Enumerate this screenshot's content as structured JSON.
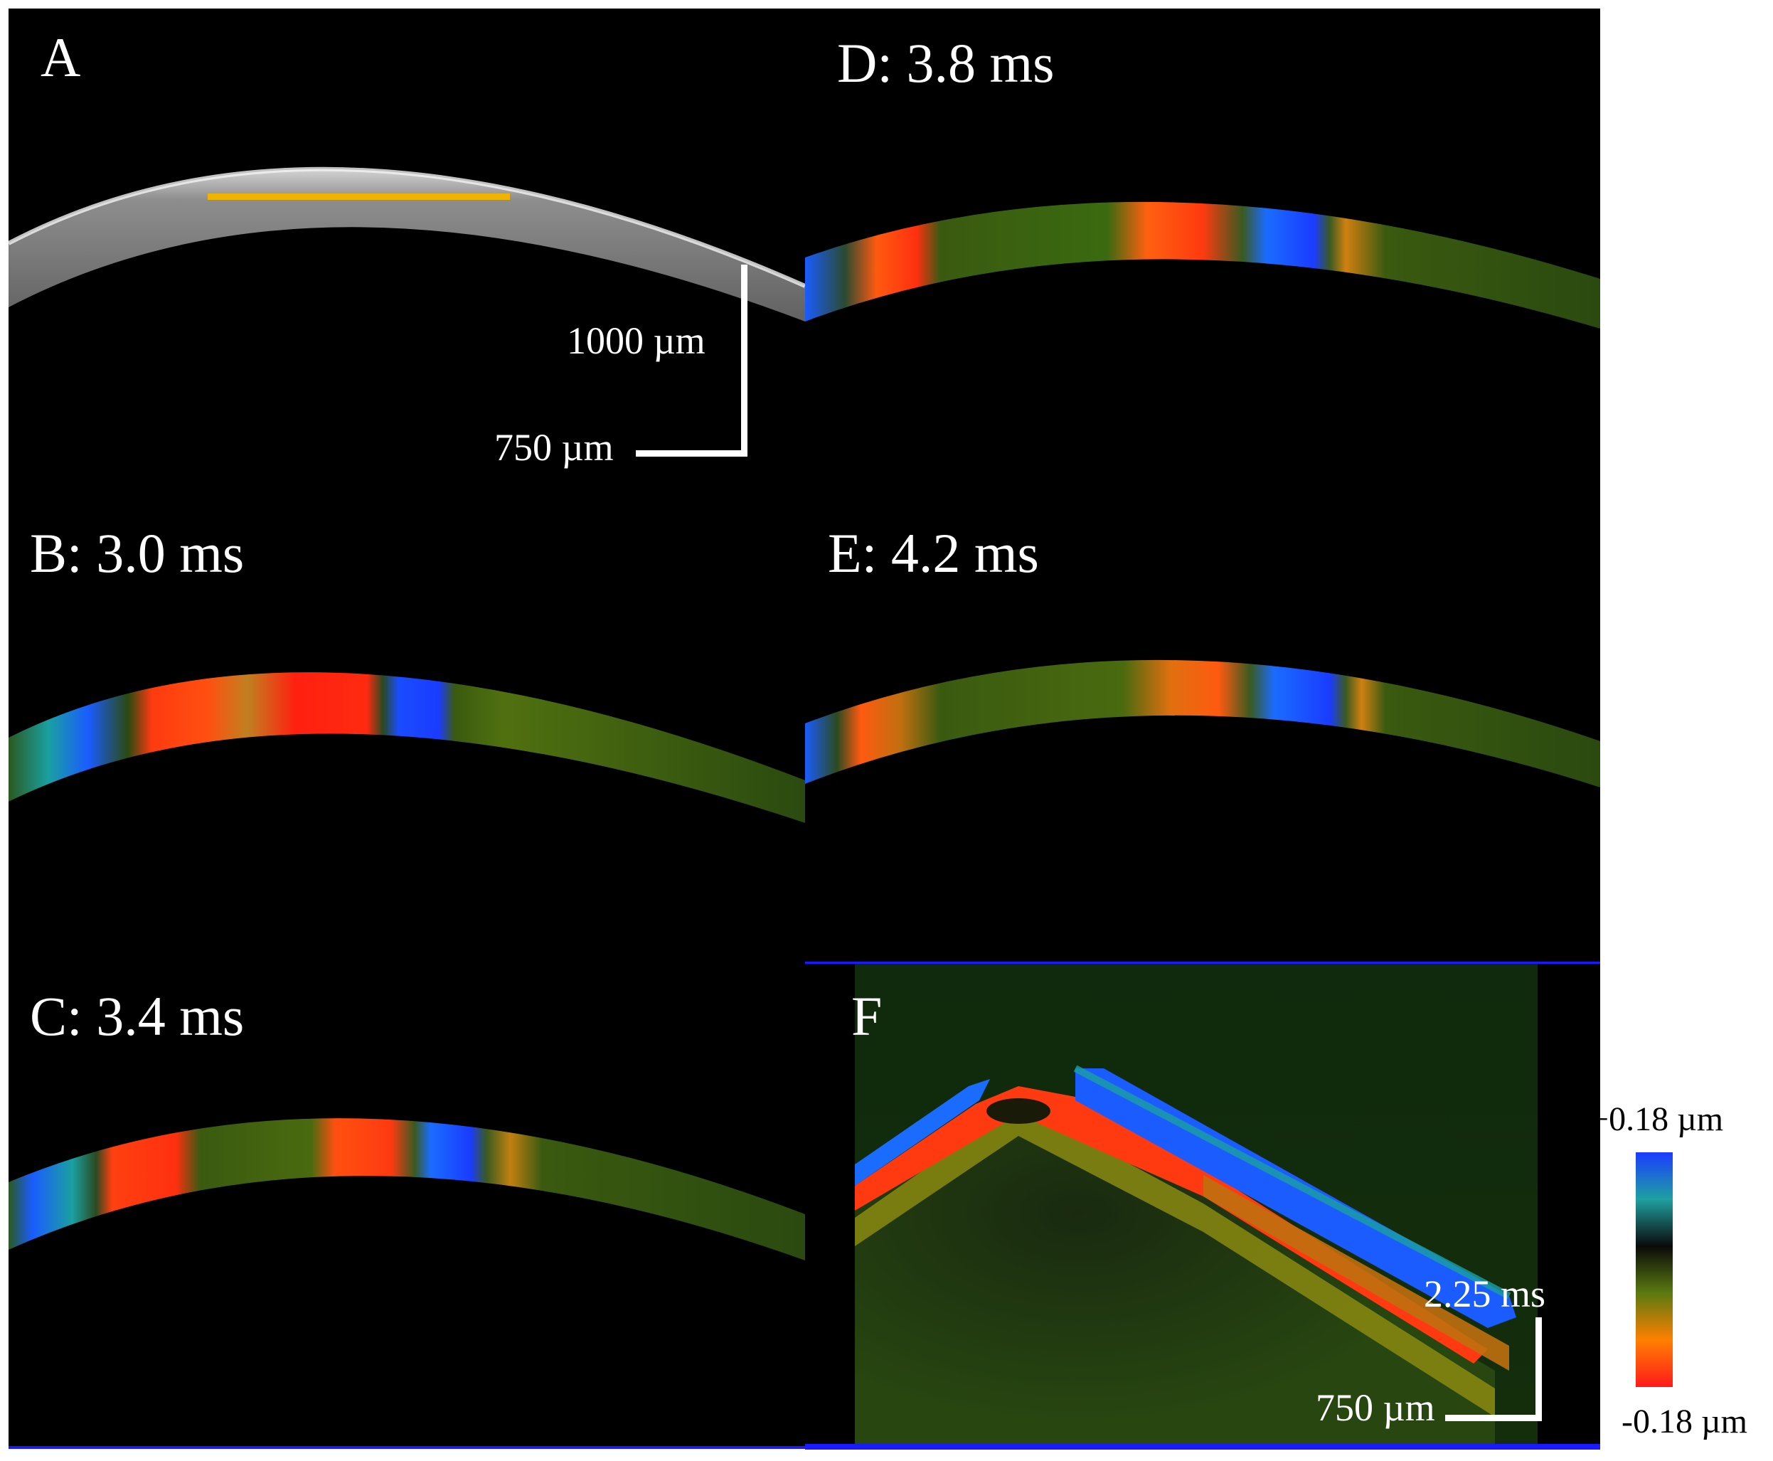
{
  "panels": {
    "A": {
      "label": "A"
    },
    "B": {
      "label": "B: 3.0 ms"
    },
    "C": {
      "label": "C: 3.4 ms"
    },
    "D": {
      "label": "D: 3.8 ms"
    },
    "E": {
      "label": "E: 4.2 ms"
    },
    "F": {
      "label": "F"
    }
  },
  "scalebars": {
    "A_vertical": "1000 µm",
    "A_horizontal": "750 µm",
    "F_vertical": "2.25 ms",
    "F_horizontal": "750 µm"
  },
  "colorbar": {
    "max_label": "+0.18 µm",
    "min_label": "-0.18 µm",
    "colors": [
      "#1a3cff",
      "#1fa0a0",
      "#0a0a0a",
      "#5a7a10",
      "#ff8000",
      "#ff1a1a"
    ]
  },
  "colors": {
    "marker_line": "#f0b400",
    "background_panel": "#000000",
    "edge_line": "#1a1aff"
  }
}
